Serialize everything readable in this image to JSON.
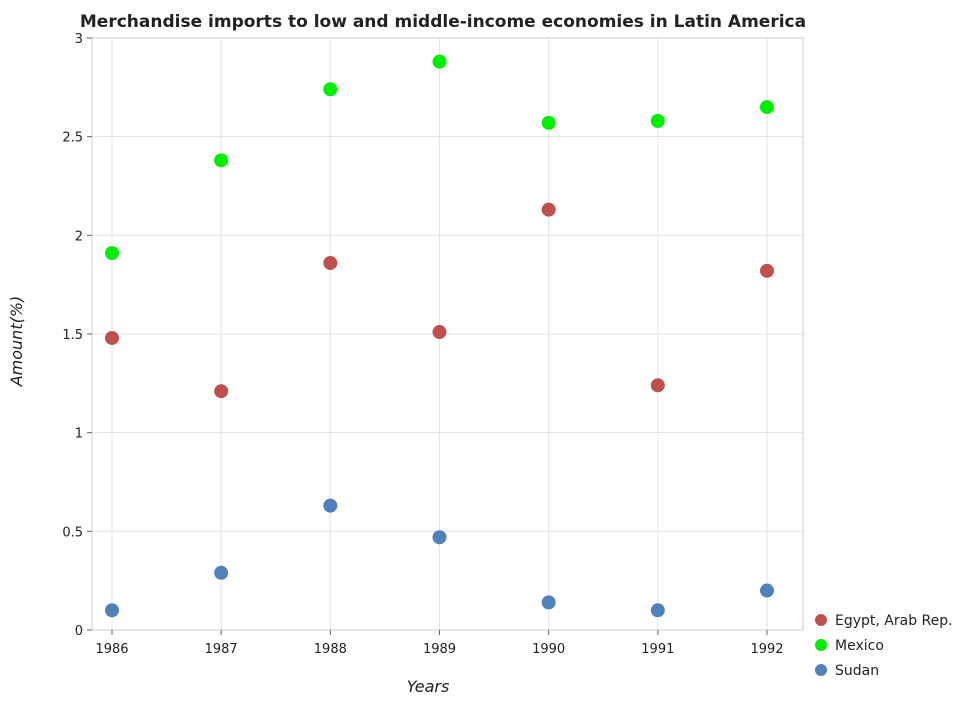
{
  "chart_data": {
    "type": "scatter",
    "title": "Merchandise imports to low and middle-income economies in Latin America",
    "xlabel": "Years",
    "ylabel": "Amount(%)",
    "categories": [
      "1986",
      "1987",
      "1988",
      "1989",
      "1990",
      "1991",
      "1992"
    ],
    "yticks": [
      "0",
      "0.5",
      "1",
      "1.5",
      "2",
      "2.5",
      "3"
    ],
    "ylim": [
      0,
      3
    ],
    "grid": true,
    "legend_position": "bottom-right",
    "series": [
      {
        "name": "Egypt, Arab Rep.",
        "color": "#c0504d",
        "values": [
          1.48,
          1.21,
          1.86,
          1.51,
          2.13,
          1.24,
          1.82
        ]
      },
      {
        "name": "Mexico",
        "color": "#00ee00",
        "values": [
          1.91,
          2.38,
          2.74,
          2.88,
          2.57,
          2.58,
          2.65
        ]
      },
      {
        "name": "Sudan",
        "color": "#4f81bd",
        "values": [
          0.1,
          0.29,
          0.63,
          0.47,
          0.14,
          0.1,
          0.2
        ]
      }
    ]
  }
}
